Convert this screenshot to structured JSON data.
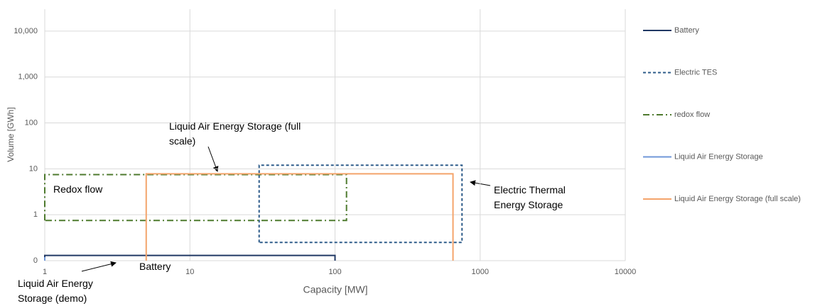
{
  "chart_data": {
    "type": "line",
    "x_label": "Capacity [MW]",
    "y_label": "Volume [GWh]",
    "x_log": true,
    "y_log": true,
    "grid": true,
    "legend": "right",
    "xlim": [
      1,
      10000
    ],
    "xticks": [
      1,
      10,
      100,
      1000,
      10000
    ],
    "ylim": [
      0.1,
      30000
    ],
    "yticks": [
      {
        "value": 0.1,
        "label": "0"
      },
      1,
      10,
      100,
      {
        "value": 1000,
        "label": "1,000"
      },
      {
        "value": 10000,
        "label": "10,000"
      }
    ],
    "series": [
      {
        "name": "Battery",
        "color": "#203864",
        "dash": "solid",
        "x": [
          1,
          1,
          100,
          100
        ],
        "values": [
          0.1,
          0.13,
          0.13,
          0.1
        ]
      },
      {
        "name": "Electric TES",
        "color": "#2e5c8a",
        "dash": "dashed",
        "x": [
          30,
          30,
          750,
          750,
          30
        ],
        "values": [
          0.25,
          12,
          12,
          0.25,
          0.25
        ]
      },
      {
        "name": "redox flow",
        "color": "#4e7a2e",
        "dash": "dashdot",
        "x": [
          1,
          1,
          120,
          120,
          1
        ],
        "values": [
          0.75,
          7.5,
          7.5,
          0.75,
          0.75
        ]
      },
      {
        "name": "Liquid Air Energy Storage",
        "color": "#6f97d8",
        "dash": "solid",
        "x": [
          1,
          1
        ],
        "values": [
          0.1,
          0.12
        ]
      },
      {
        "name": "Liquid Air Energy Storage (full scale)",
        "color": "#f4a46b",
        "dash": "solid",
        "x": [
          5,
          5,
          650,
          650
        ],
        "values": [
          0.1,
          7.8,
          7.8,
          0.1
        ]
      }
    ],
    "annotations": [
      "Liquid Air Energy Storage (full scale)",
      "Redox flow",
      "Electric Thermal Energy Storage",
      "Battery",
      "Liquid Air Energy Storage (demo)"
    ]
  }
}
